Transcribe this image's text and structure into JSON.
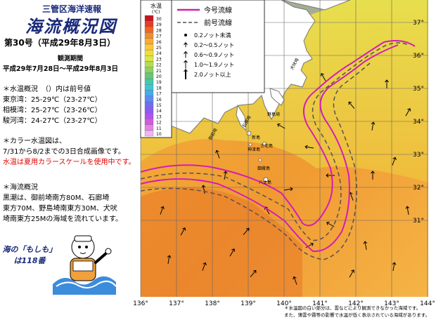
{
  "header": {
    "org": "三管区海洋速報",
    "title": "海流概況図",
    "issue": "第30号（平成29年8月3日）",
    "obs_label": "観測期間",
    "obs_range": "平成29年7月28日〜平成29年8月3日"
  },
  "water_temp": {
    "heading": "＊水温概況　（）内は前号値",
    "rows": [
      "東京湾：25-29℃（23-27℃）",
      "相模湾：25-27℃（23-26℃）",
      "駿河湾：24-27℃（23-27℃）"
    ]
  },
  "color_note": {
    "line1": "＊カラー水温図は、",
    "line2": "7/31から8/2までの3日合成画像です。",
    "line3": "水温は夏用カラースケールを使用中です。"
  },
  "current": {
    "heading": "＊海流概況",
    "lines": [
      "黒潮は、御前埼南方80M、石廊埼",
      "東方70M、野島埼南東方30M、犬吠",
      "埼南東方25Mの海域を流れています。"
    ]
  },
  "mascot": {
    "line1": "海の「もしも」",
    "line2": "は118番"
  },
  "temp_scale": {
    "title": "水温",
    "unit": "(℃)",
    "labels": [
      "30",
      "29",
      "28",
      "27",
      "26",
      "25",
      "24",
      "23",
      "22",
      "21",
      "20",
      "19",
      "18",
      "17",
      "16",
      "15",
      "14",
      "13",
      "12",
      "11",
      "10"
    ],
    "colors": [
      "#c8141e",
      "#e63c28",
      "#f0641e",
      "#f58c28",
      "#faaa32",
      "#fcc83c",
      "#f0dc3c",
      "#dce646",
      "#b4dc50",
      "#8cd264",
      "#64c878",
      "#46c8aa",
      "#3cc8d2",
      "#46aaeb",
      "#5a8cf0",
      "#6e6ef0",
      "#8c5af0",
      "#b450f0",
      "#d25ae6",
      "#e682e6",
      "#f0b4f0"
    ]
  },
  "legend_lines": {
    "current": "今号流線",
    "previous": "前号流線",
    "current_color": "#d21eb4",
    "previous_color": "#5a5050"
  },
  "speed_legend": [
    "0.2ノット未満",
    "0.2〜0.5ノット",
    "0.6〜0.9ノット",
    "1.0〜1.9ノット",
    "2.0ノット以上"
  ],
  "map": {
    "lon_labels": [
      "136°",
      "137°",
      "138°",
      "139°",
      "140°",
      "141°",
      "142°",
      "143°",
      "144°"
    ],
    "lat_labels": [
      "37°",
      "36°",
      "35°",
      "34°",
      "33°",
      "32°",
      "31°"
    ],
    "places": [
      "犬吠埼",
      "野島埼",
      "石廊埼",
      "御前埼",
      "新島",
      "神津島",
      "三宅島",
      "御蔵島",
      "八丈島"
    ]
  },
  "footnote": {
    "line1": "＊水温図の白い部分は、雲などにより観測できなかった海域です。",
    "line2": "また、薄雲や霧等の影響で水温が低く表示されている海域があります。"
  }
}
